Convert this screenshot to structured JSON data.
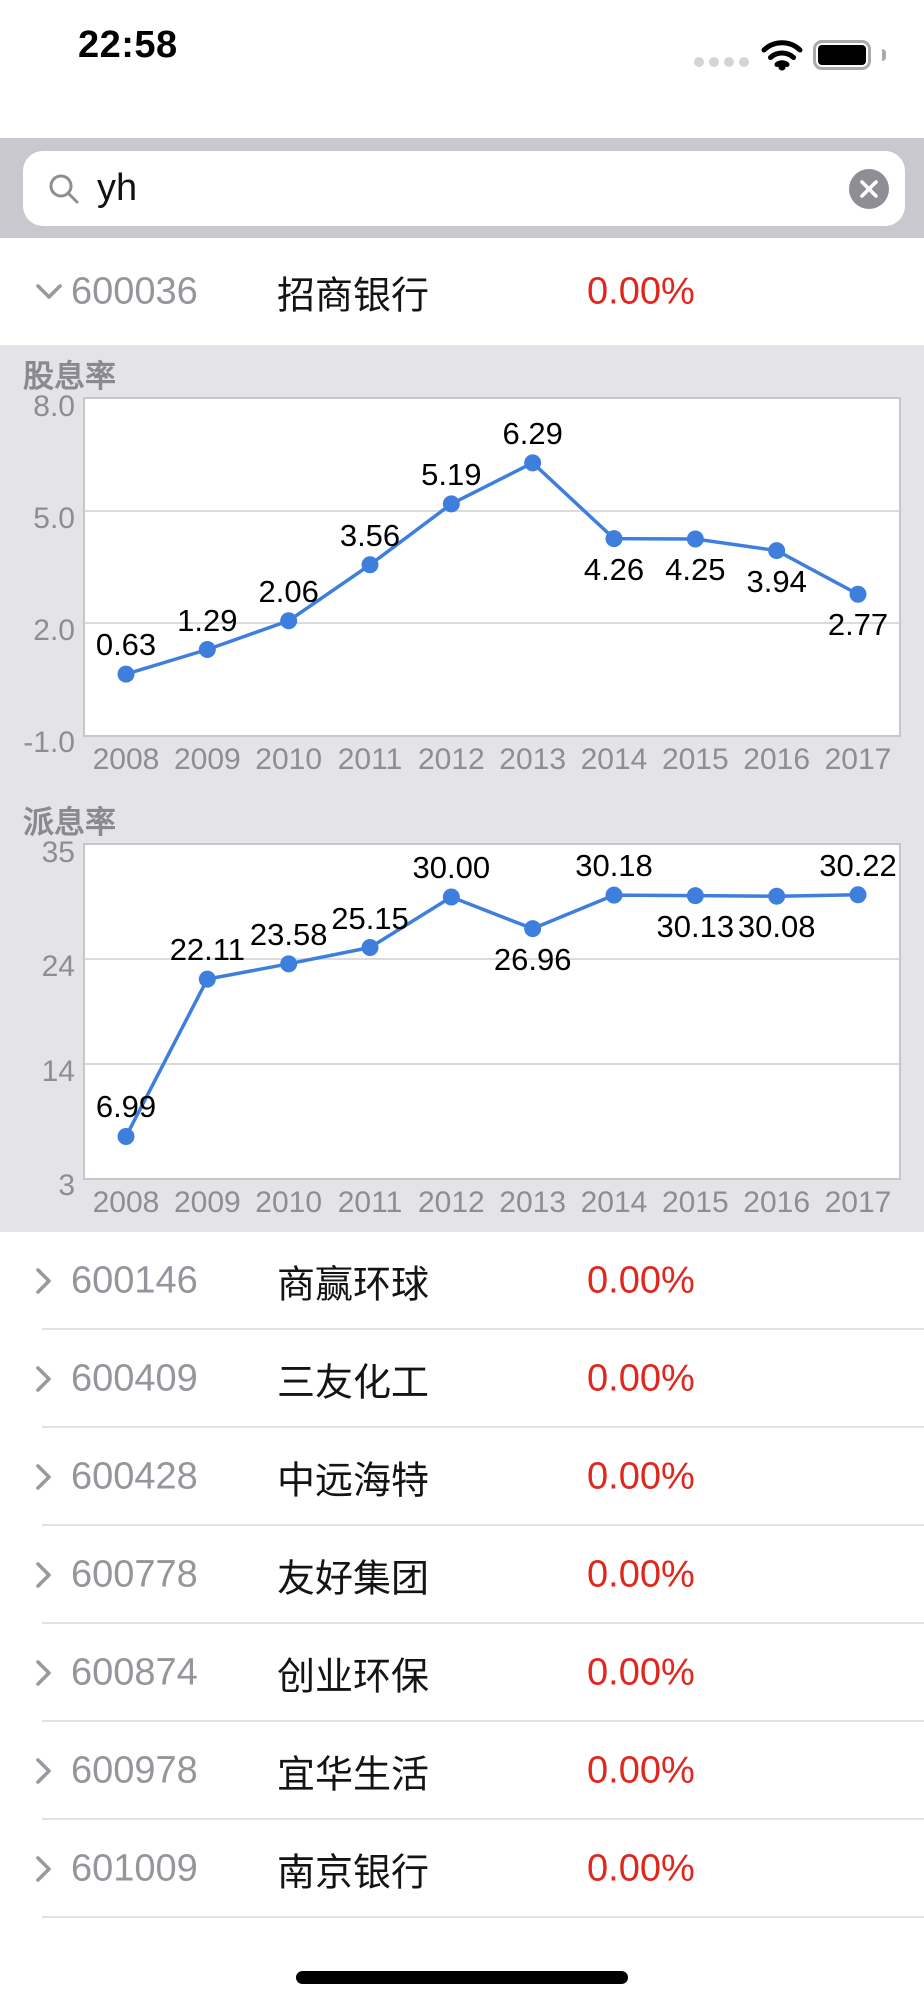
{
  "status_bar": {
    "time": "22:58"
  },
  "search": {
    "value": "yh"
  },
  "expanded_stock": {
    "code": "600036",
    "name": "招商银行",
    "change": "0.00%"
  },
  "chart_data": [
    {
      "type": "line",
      "title": "股息率",
      "x": [
        "2008",
        "2009",
        "2010",
        "2011",
        "2012",
        "2013",
        "2014",
        "2015",
        "2016",
        "2017"
      ],
      "values": [
        0.63,
        1.29,
        2.06,
        3.56,
        5.19,
        6.29,
        4.26,
        4.25,
        3.94,
        2.77
      ],
      "labels": [
        "0.63",
        "1.29",
        "2.06",
        "3.56",
        "5.19",
        "6.29",
        "4.26",
        "4.25",
        "3.94",
        "2.77"
      ],
      "label_side": [
        "above",
        "above",
        "above",
        "above",
        "above",
        "above",
        "below",
        "below",
        "below",
        "below"
      ],
      "ylim": [
        -1.0,
        8.0
      ],
      "yticks": [
        {
          "label": "8.0",
          "value": 8.0
        },
        {
          "label": "5.0",
          "value": 5.0
        },
        {
          "label": "2.0",
          "value": 2.0
        },
        {
          "label": "-1.0",
          "value": -1.0
        }
      ],
      "gridlines": [
        5.0,
        2.0
      ],
      "grid": true,
      "legend": "none"
    },
    {
      "type": "line",
      "title": "派息率",
      "x": [
        "2008",
        "2009",
        "2010",
        "2011",
        "2012",
        "2013",
        "2014",
        "2015",
        "2016",
        "2017"
      ],
      "values": [
        6.99,
        22.11,
        23.58,
        25.15,
        30.0,
        26.96,
        30.18,
        30.13,
        30.08,
        30.22
      ],
      "labels": [
        "6.99",
        "22.11",
        "23.58",
        "25.15",
        "30.00",
        "26.96",
        "30.18",
        "30.13",
        "30.08",
        "30.22"
      ],
      "label_side": [
        "above",
        "above",
        "above",
        "above",
        "above",
        "below",
        "above",
        "below",
        "below",
        "above"
      ],
      "ylim": [
        3,
        35
      ],
      "yticks": [
        {
          "label": "35",
          "value": 35
        },
        {
          "label": "24",
          "value": 24
        },
        {
          "label": "14",
          "value": 14
        },
        {
          "label": "3",
          "value": 3
        }
      ],
      "gridlines": [
        24,
        14
      ],
      "grid": true,
      "legend": "none"
    }
  ],
  "stocks": [
    {
      "code": "600146",
      "name": "商赢环球",
      "change": "0.00%"
    },
    {
      "code": "600409",
      "name": "三友化工",
      "change": "0.00%"
    },
    {
      "code": "600428",
      "name": "中远海特",
      "change": "0.00%"
    },
    {
      "code": "600778",
      "name": "友好集团",
      "change": "0.00%"
    },
    {
      "code": "600874",
      "name": "创业环保",
      "change": "0.00%"
    },
    {
      "code": "600978",
      "name": "宜华生活",
      "change": "0.00%"
    },
    {
      "code": "601009",
      "name": "南京银行",
      "change": "0.00%"
    }
  ],
  "colors": {
    "line_blue": "#3e7fdd",
    "change_red": "#e1261d",
    "panel_gray": "#e4e3e8",
    "search_band_gray": "#c9c8ce"
  }
}
